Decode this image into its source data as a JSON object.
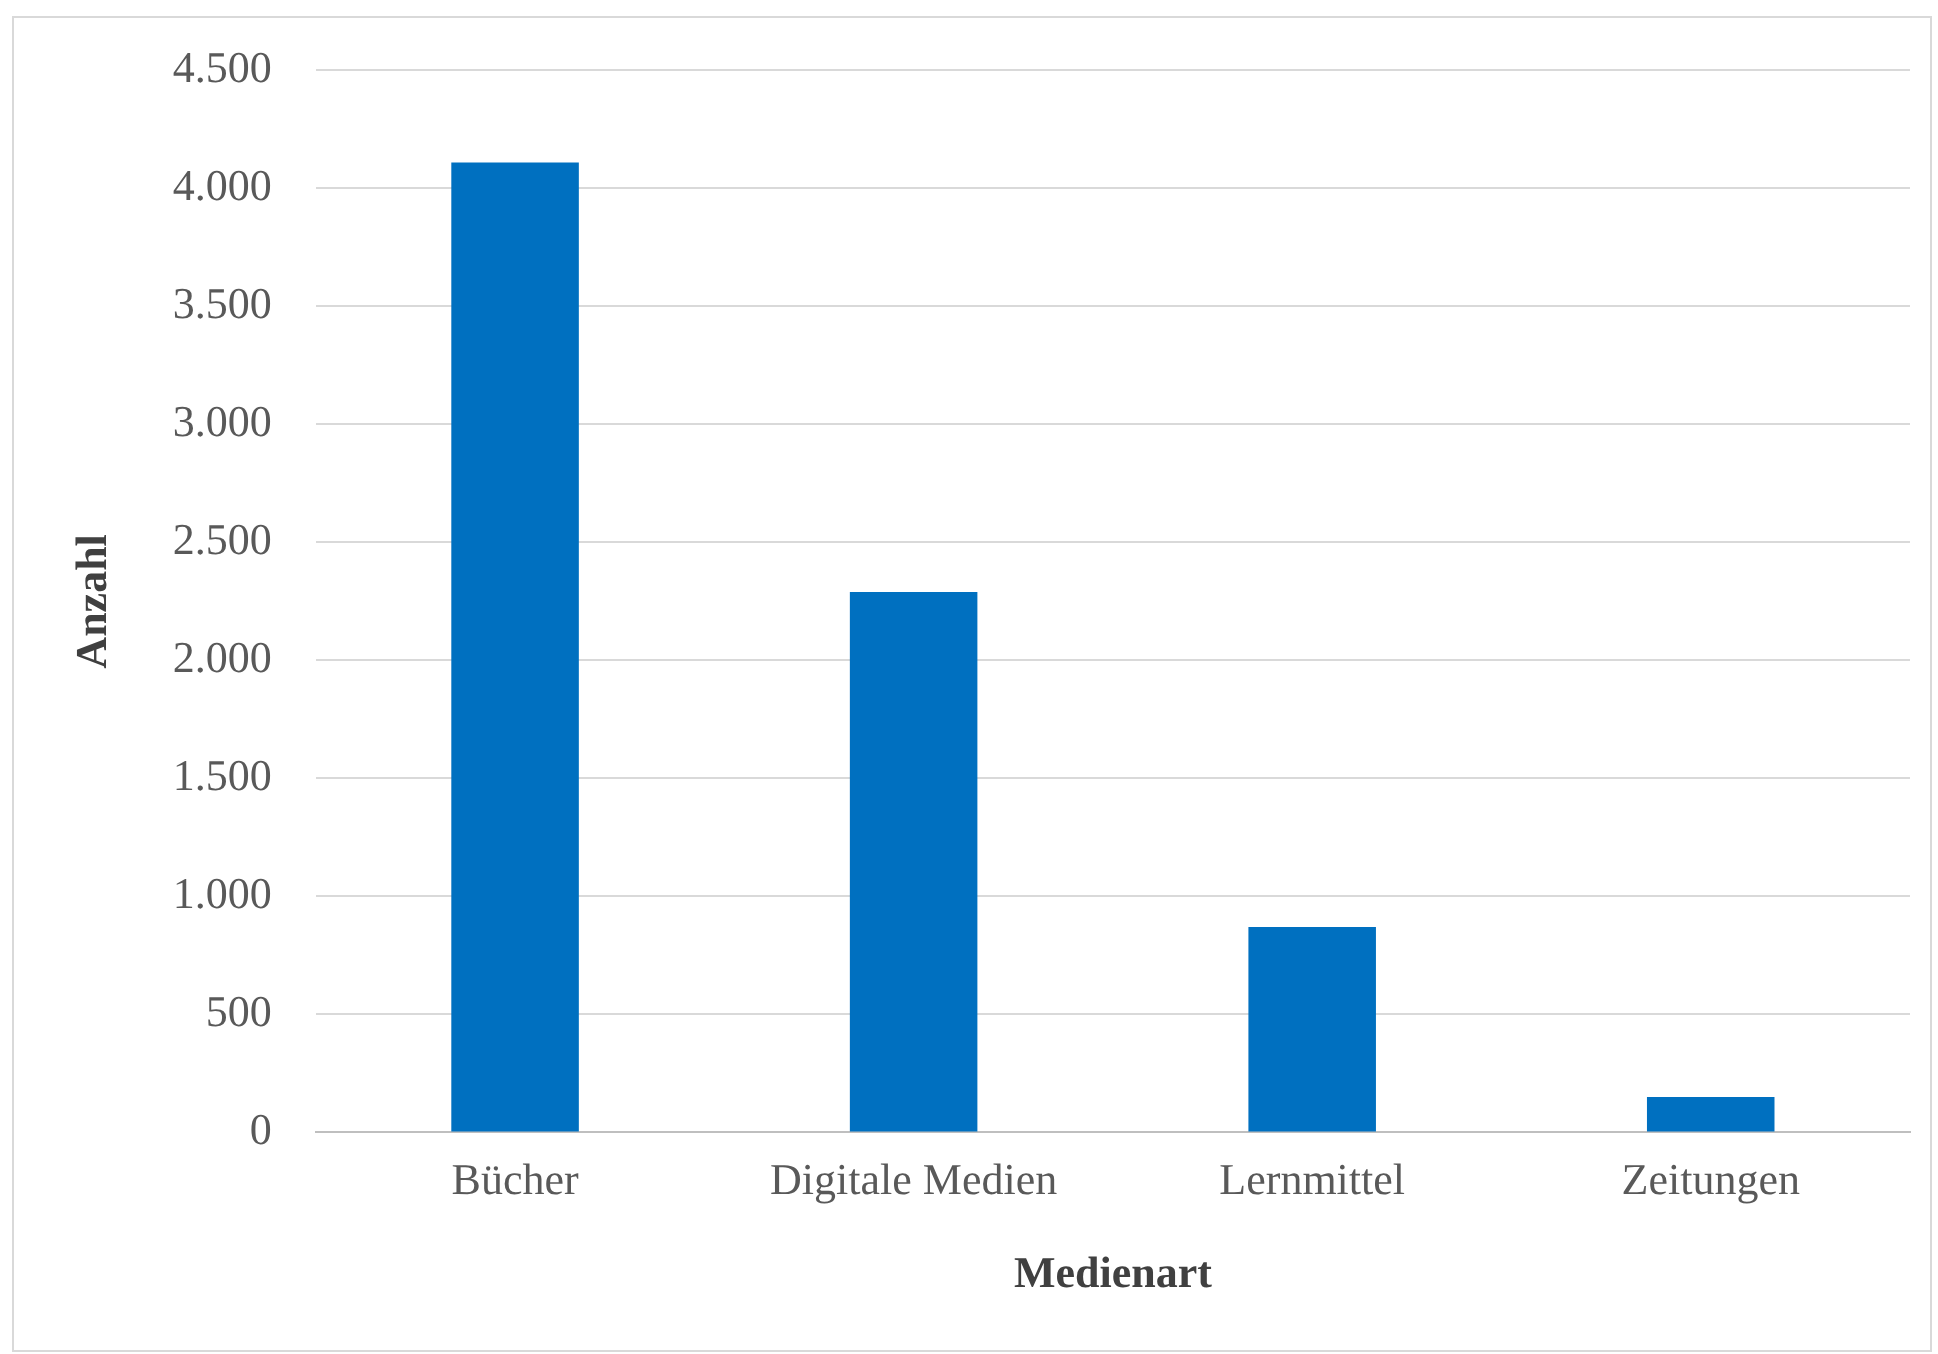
{
  "chart_data": {
    "type": "bar",
    "xlabel": "Medienart",
    "ylabel": "Anzahl",
    "categories": [
      "Bücher",
      "Digitale Medien",
      "Lernmittel",
      "Zeitungen"
    ],
    "values": [
      4110,
      2290,
      870,
      150
    ],
    "color": "#0070c0",
    "ylim": [
      0,
      4500
    ],
    "yticks": [
      0,
      500,
      {
        "value": 1000,
        "label": "1.000"
      },
      {
        "value": 1500,
        "label": "1.500"
      },
      {
        "value": 2000,
        "label": "2.000"
      },
      {
        "value": 2500,
        "label": "2.500"
      },
      {
        "value": 3000,
        "label": "3.000"
      },
      {
        "value": 3500,
        "label": "3.500"
      },
      {
        "value": 4000,
        "label": "4.000"
      },
      {
        "value": 4500,
        "label": "4.500"
      }
    ],
    "grid": "y",
    "legend": false
  }
}
